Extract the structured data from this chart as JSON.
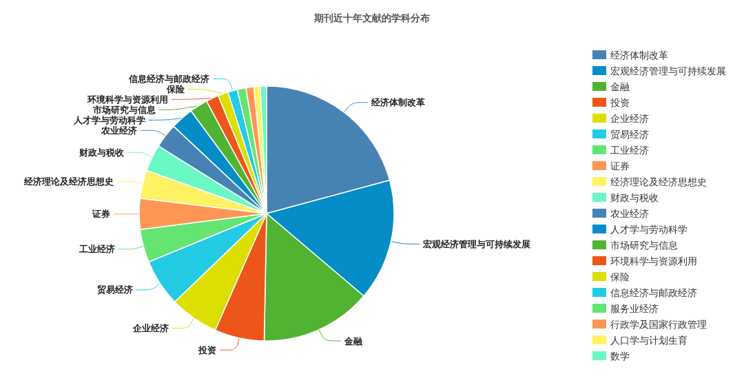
{
  "chart_data": {
    "type": "pie",
    "title": "期刊近十年文献的学科分布",
    "categories": [
      "经济体制改革",
      "宏观经济管理与可持续发展",
      "金融",
      "投资",
      "企业经济",
      "贸易经济",
      "工业经济",
      "证券",
      "经济理论及经济思想史",
      "财政与税收",
      "农业经济",
      "人才学与劳动科学",
      "市场研究与信息",
      "环境科学与资源利用",
      "保险",
      "信息经济与邮政经济",
      "服务业经济",
      "行政学及国家行政管理",
      "人口学与计划生育",
      "数学"
    ],
    "values": [
      20.8,
      15.4,
      14.1,
      6.3,
      6.2,
      6.0,
      4.2,
      3.9,
      3.6,
      3.4,
      3.1,
      2.9,
      2.3,
      1.6,
      1.3,
      1.2,
      1.1,
      1.0,
      0.8,
      0.8
    ],
    "colors": [
      "#4682b4",
      "#058dc7",
      "#50b432",
      "#ed561b",
      "#dddf00",
      "#24cbe5",
      "#64e572",
      "#ff9655",
      "#fff263",
      "#6af9c4",
      "#4682b4",
      "#058dc7",
      "#50b432",
      "#ed561b",
      "#dddf00",
      "#24cbe5",
      "#64e572",
      "#ff9655",
      "#fff263",
      "#6af9c4"
    ],
    "legend": "right"
  }
}
